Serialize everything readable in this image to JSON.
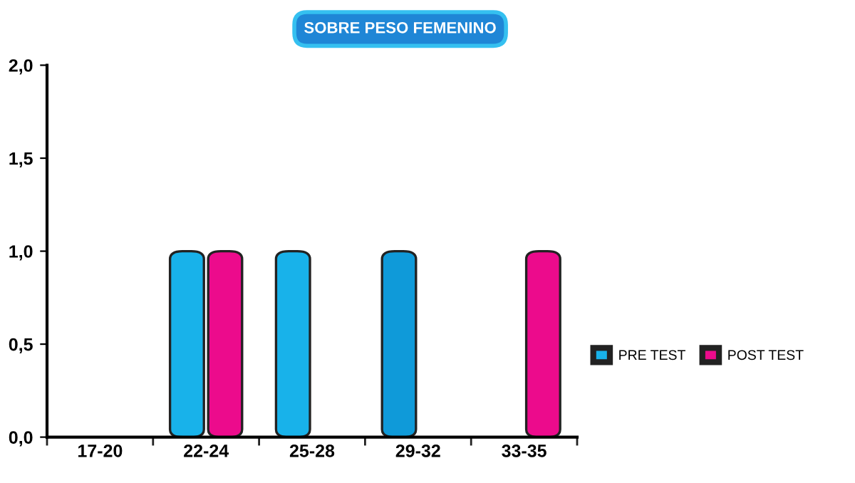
{
  "chart_data": {
    "type": "bar",
    "title": "SOBRE PESO FEMENINO",
    "categories": [
      "17-20",
      "22-24",
      "25-28",
      "29-32",
      "33-35"
    ],
    "series": [
      {
        "name": "PRE TEST",
        "color": "#18b2ea",
        "colors": [
          "#18b2ea",
          "#18b2ea",
          "#18b2ea",
          "#0f9ad9",
          "#18b2ea"
        ],
        "values": [
          0,
          1,
          1,
          1,
          0
        ]
      },
      {
        "name": "POST TEST",
        "color": "#ec0b8c",
        "values": [
          0,
          1,
          0,
          0,
          1
        ]
      }
    ],
    "ylim": [
      0,
      2
    ],
    "yticks": [
      {
        "value": 0,
        "label": "0,0"
      },
      {
        "value": 0.5,
        "label": "0,5"
      },
      {
        "value": 1,
        "label": "1,0"
      },
      {
        "value": 1.5,
        "label": "1,5"
      },
      {
        "value": 2,
        "label": "2,0"
      }
    ],
    "grid": false,
    "legend": "right"
  }
}
